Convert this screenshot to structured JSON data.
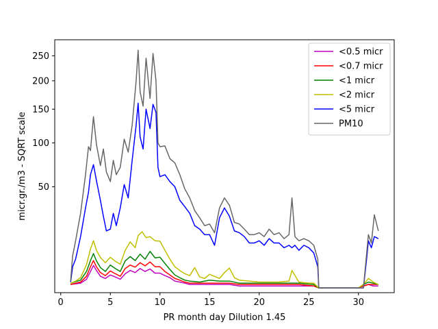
{
  "chart_data": {
    "type": "line",
    "title": "",
    "xlabel": "PR month day  Dilution 1.45",
    "ylabel": "micr.gr./m3 - SQRT scale",
    "xlim": [
      -0.6,
      33.6
    ],
    "ylim": [
      0,
      285
    ],
    "y_scale": "sqrt",
    "x_ticks": [
      0,
      5,
      10,
      15,
      20,
      25,
      30
    ],
    "y_ticks": [
      50,
      100,
      150,
      200,
      250
    ],
    "grid": false,
    "legend_position": "top-right",
    "series": [
      {
        "name": "<0.5 micr",
        "color": "#bf00bf",
        "x": [
          1.0,
          2.0,
          2.6,
          3.0,
          3.3,
          3.6,
          4.0,
          4.5,
          5.0,
          5.5,
          6.0,
          6.5,
          7.0,
          7.5,
          8.0,
          8.5,
          9.0,
          9.5,
          10.0,
          10.5,
          11.0,
          11.5,
          12.0,
          12.5,
          13.0,
          14.0,
          15.0,
          16.0,
          17.0,
          18.0,
          20.0,
          22.0,
          24.0,
          25.5,
          26.0,
          28.0,
          30.0,
          30.5,
          31.0,
          31.5,
          32.0
        ],
        "y": [
          0.3,
          0.4,
          0.8,
          2.0,
          3.3,
          2.2,
          1.2,
          0.9,
          1.4,
          1.1,
          0.8,
          1.6,
          2.2,
          1.8,
          2.6,
          2.0,
          2.5,
          1.7,
          1.7,
          1.3,
          1.0,
          0.6,
          0.5,
          0.4,
          0.3,
          0.3,
          0.3,
          0.3,
          0.3,
          0.2,
          0.2,
          0.2,
          0.2,
          0.2,
          0.1,
          0.1,
          0.1,
          0.2,
          0.3,
          0.2,
          0.2
        ]
      },
      {
        "name": "<0.7 micr",
        "color": "#ff0000",
        "x": [
          1.0,
          2.0,
          2.6,
          3.0,
          3.3,
          3.6,
          4.0,
          4.5,
          5.0,
          5.5,
          6.0,
          6.5,
          7.0,
          7.5,
          8.0,
          8.5,
          9.0,
          9.5,
          10.0,
          10.5,
          11.0,
          11.5,
          12.0,
          12.5,
          13.0,
          14.0,
          15.0,
          16.0,
          17.0,
          18.0,
          20.0,
          22.0,
          24.0,
          25.5,
          26.0,
          28.0,
          30.0,
          30.5,
          31.0,
          31.5,
          32.0
        ],
        "y": [
          0.3,
          0.5,
          1.2,
          3.0,
          4.6,
          3.0,
          1.8,
          1.3,
          2.1,
          1.6,
          1.2,
          2.6,
          3.4,
          2.9,
          4.0,
          3.2,
          4.2,
          3.0,
          3.0,
          2.0,
          1.4,
          0.9,
          0.7,
          0.5,
          0.4,
          0.4,
          0.4,
          0.4,
          0.4,
          0.3,
          0.3,
          0.3,
          0.3,
          0.2,
          0.1,
          0.1,
          0.1,
          0.2,
          0.3,
          0.3,
          0.3
        ]
      },
      {
        "name": "<1 micr",
        "color": "#008000",
        "x": [
          1.0,
          2.0,
          2.6,
          3.0,
          3.3,
          3.6,
          4.0,
          4.5,
          5.0,
          5.5,
          6.0,
          6.5,
          7.0,
          7.5,
          8.0,
          8.5,
          9.0,
          9.5,
          10.0,
          10.5,
          11.0,
          11.5,
          12.0,
          12.5,
          13.0,
          14.0,
          15.0,
          16.0,
          17.0,
          18.0,
          20.0,
          22.0,
          24.0,
          25.5,
          26.0,
          28.0,
          30.0,
          30.5,
          31.0,
          31.5,
          32.0
        ],
        "y": [
          0.4,
          0.7,
          2.0,
          4.6,
          6.8,
          4.5,
          2.8,
          2.0,
          3.4,
          2.6,
          2.0,
          4.5,
          5.8,
          4.6,
          6.6,
          5.0,
          7.6,
          5.4,
          5.6,
          3.8,
          2.4,
          1.4,
          1.0,
          0.7,
          0.6,
          0.5,
          0.7,
          0.6,
          0.6,
          0.4,
          0.4,
          0.4,
          0.4,
          0.3,
          0.1,
          0.1,
          0.1,
          0.3,
          0.5,
          0.4,
          0.3
        ]
      },
      {
        "name": "<2 micr",
        "color": "#bfbf00",
        "x": [
          1.0,
          1.5,
          2.0,
          2.6,
          3.0,
          3.3,
          3.6,
          4.0,
          4.5,
          5.0,
          5.5,
          6.0,
          6.5,
          7.0,
          7.5,
          7.8,
          8.2,
          8.6,
          9.0,
          9.5,
          10.0,
          10.5,
          11.0,
          11.5,
          12.0,
          12.5,
          13.0,
          13.5,
          14.0,
          14.5,
          15.0,
          16.0,
          16.5,
          17.0,
          17.5,
          18.0,
          19.0,
          20.0,
          21.0,
          22.0,
          23.0,
          23.3,
          24.0,
          25.0,
          25.5,
          26.0,
          27.0,
          28.0,
          29.0,
          30.0,
          30.5,
          31.0,
          31.5,
          32.0
        ],
        "y": [
          0.4,
          0.6,
          1.0,
          3.5,
          8.5,
          12.0,
          8.0,
          5.5,
          4.0,
          5.6,
          4.4,
          3.6,
          8.0,
          11.5,
          9.0,
          14.5,
          16.5,
          13.5,
          14.0,
          12.0,
          11.8,
          8.0,
          5.0,
          3.0,
          2.2,
          1.6,
          1.3,
          2.8,
          1.1,
          0.9,
          1.5,
          0.9,
          1.8,
          2.7,
          1.0,
          0.7,
          0.6,
          0.5,
          0.5,
          0.5,
          0.6,
          2.2,
          0.5,
          0.4,
          0.4,
          0.1,
          0.1,
          0.1,
          0.1,
          0.1,
          0.3,
          0.9,
          0.5,
          0.3
        ]
      },
      {
        "name": "<5 micr",
        "color": "#0000ff",
        "x": [
          1.0,
          1.2,
          1.5,
          2.0,
          2.5,
          2.8,
          3.0,
          3.3,
          3.6,
          4.0,
          4.3,
          4.6,
          5.0,
          5.3,
          5.6,
          6.0,
          6.4,
          6.8,
          7.2,
          7.6,
          7.8,
          8.0,
          8.3,
          8.6,
          9.0,
          9.3,
          9.6,
          9.8,
          10.0,
          10.5,
          11.0,
          11.5,
          12.0,
          12.5,
          13.0,
          13.5,
          14.0,
          14.5,
          15.0,
          15.5,
          16.0,
          16.5,
          17.0,
          17.5,
          18.0,
          18.5,
          19.0,
          19.5,
          20.0,
          20.5,
          21.0,
          21.5,
          22.0,
          22.5,
          23.0,
          23.3,
          23.6,
          24.0,
          24.5,
          25.0,
          25.5,
          25.9,
          26.0,
          27.0,
          28.0,
          29.0,
          30.0,
          30.5,
          30.8,
          31.0,
          31.3,
          31.6,
          32.0
        ],
        "y": [
          0.5,
          3.0,
          5.0,
          14.0,
          32.0,
          45.0,
          62.0,
          73.0,
          56.0,
          38.0,
          26.0,
          17.0,
          18.0,
          28.0,
          20.0,
          32.0,
          52.0,
          40.0,
          78.0,
          125.0,
          160.0,
          108.0,
          92.0,
          150.0,
          120.0,
          158.0,
          145.0,
          70.0,
          60.0,
          62.0,
          55.0,
          50.0,
          38.0,
          33.0,
          28.0,
          20.0,
          18.0,
          15.0,
          15.0,
          10.0,
          25.0,
          32.0,
          26.0,
          17.0,
          16.0,
          14.0,
          11.0,
          11.0,
          12.0,
          10.0,
          13.0,
          11.0,
          11.0,
          9.0,
          10.0,
          9.0,
          10.0,
          8.0,
          10.0,
          9.0,
          7.0,
          3.0,
          0.1,
          0.1,
          0.1,
          0.1,
          0.1,
          0.1,
          4.5,
          12.0,
          9.0,
          14.0,
          13.0
        ]
      },
      {
        "name": "PM10",
        "color": "#666666",
        "x": [
          1.0,
          1.2,
          1.5,
          2.0,
          2.5,
          2.8,
          3.0,
          3.3,
          3.6,
          4.0,
          4.3,
          4.6,
          5.0,
          5.3,
          5.6,
          6.0,
          6.4,
          6.8,
          7.2,
          7.6,
          7.8,
          8.0,
          8.3,
          8.6,
          9.0,
          9.3,
          9.6,
          9.8,
          10.0,
          10.5,
          11.0,
          11.5,
          12.0,
          12.5,
          13.0,
          13.5,
          14.0,
          14.5,
          15.0,
          15.5,
          16.0,
          16.5,
          17.0,
          17.5,
          18.0,
          18.5,
          19.0,
          19.5,
          20.0,
          20.5,
          21.0,
          21.5,
          22.0,
          22.5,
          23.0,
          23.3,
          23.6,
          24.0,
          24.5,
          25.0,
          25.5,
          25.9,
          26.0,
          27.0,
          28.0,
          29.0,
          30.0,
          30.5,
          30.8,
          31.0,
          31.3,
          31.6,
          32.0
        ],
        "y": [
          0.6,
          6.0,
          12.0,
          28.0,
          62.0,
          95.0,
          90.0,
          138.0,
          98.0,
          72.0,
          92.0,
          65.0,
          55.0,
          78.0,
          62.0,
          70.0,
          105.0,
          88.0,
          125.0,
          200.0,
          262.0,
          180.0,
          155.0,
          245.0,
          168.0,
          255.0,
          200.0,
          100.0,
          95.0,
          96.0,
          80.0,
          75.0,
          62.0,
          48.0,
          40.0,
          30.0,
          25.0,
          20.0,
          21.0,
          16.0,
          32.0,
          40.0,
          34.0,
          22.0,
          21.0,
          18.0,
          15.0,
          15.0,
          16.0,
          14.0,
          18.0,
          15.0,
          16.0,
          13.0,
          15.0,
          40.0,
          14.0,
          12.0,
          13.0,
          12.0,
          10.0,
          5.0,
          0.1,
          0.1,
          0.1,
          0.1,
          0.1,
          0.1,
          6.0,
          15.0,
          11.0,
          27.0,
          17.0
        ]
      }
    ]
  }
}
